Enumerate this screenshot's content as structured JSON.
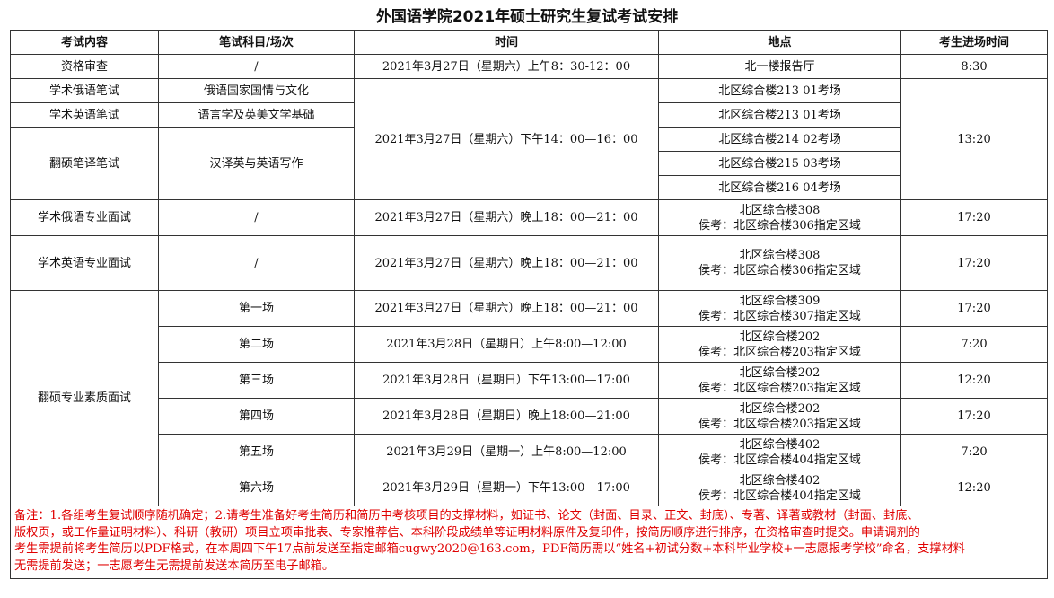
{
  "title": "外国语学院2021年硕士研究生复试考试安排",
  "headers": [
    "考试内容",
    "笔试科目/场次",
    "时间",
    "地点",
    "考生进场时间"
  ],
  "rows": {
    "qual": {
      "content": "资格审查",
      "subject": "/",
      "time": "2021年3月27日（星期六）上午8：30-12：00",
      "place": "北一楼报告厅",
      "entry": "8:30"
    },
    "written": {
      "ru_content": "学术俄语笔试",
      "ru_subject": "俄语国家国情与文化",
      "en_content": "学术英语笔试",
      "en_subject": "语言学及英美文学基础",
      "tr_content": "翻硕笔译笔试",
      "tr_subject": "汉译英与英语写作",
      "time": "2021年3月27日（星期六）下午14：00—16：00",
      "places": [
        "北区综合楼213 01考场",
        "北区综合楼213 01考场",
        "北区综合楼214 02考场",
        "北区综合楼215 03考场",
        "北区综合楼216 04考场"
      ],
      "entry": "13:20"
    },
    "ru_interview": {
      "content": "学术俄语专业面试",
      "subject": "/",
      "time": "2021年3月27日（星期六）晚上18：00—21：00",
      "place1": "北区综合楼308",
      "place2": "侯考：北区综合楼306指定区域",
      "entry": "17:20"
    },
    "en_interview": {
      "content": "学术英语专业面试",
      "subject": "/",
      "time": "2021年3月27日（星期六）晚上18：00—21：00",
      "place1": "北区综合楼308",
      "place2": "侯考：北区综合楼306指定区域",
      "entry": "17:20"
    },
    "tr_interview": {
      "content": "翻硕专业素质面试",
      "sessions": [
        {
          "name": "第一场",
          "time": "2021年3月27日（星期六）晚上18：00—21：00",
          "place1": "北区综合楼309",
          "place2": "侯考：北区综合楼307指定区域",
          "entry": "17:20"
        },
        {
          "name": "第二场",
          "time": "2021年3月28日（星期日）上午8:00—12:00",
          "place1": "北区综合楼202",
          "place2": "侯考：北区综合楼203指定区域",
          "entry": "7:20"
        },
        {
          "name": "第三场",
          "time": "2021年3月28日（星期日）下午13:00—17:00",
          "place1": "北区综合楼202",
          "place2": "侯考：北区综合楼203指定区域",
          "entry": "12:20"
        },
        {
          "name": "第四场",
          "time": "2021年3月28日（星期日）晚上18:00—21:00",
          "place1": "北区综合楼202",
          "place2": "侯考：北区综合楼203指定区域",
          "entry": "17:20"
        },
        {
          "name": "第五场",
          "time": "2021年3月29日（星期一）上午8:00—12:00",
          "place1": "北区综合楼402",
          "place2": "侯考：北区综合楼404指定区域",
          "entry": "7:20"
        },
        {
          "name": "第六场",
          "time": "2021年3月29日（星期一）下午13:00—17:00",
          "place1": "北区综合楼402",
          "place2": "侯考：北区综合楼404指定区域",
          "entry": "12:20"
        }
      ]
    }
  },
  "note_lines": [
    "备注：1.各组考生复试顺序随机确定；2.请考生准备好考生简历和简历中考核项目的支撑材料，如证书、论文（封面、目录、正文、封底）、专著、译著或教材（封面、封底、",
    "版权页，或工作量证明材料）、科研（教研）项目立项审批表、专家推荐信、本科阶段成绩单等证明材料原件及复印件，按简历顺序进行排序，在资格审查时提交。申请调剂的",
    "考生需提前将考生简历以PDF格式，在本周四下午17点前发送至指定邮箱cugwy2020@163.com，PDF简历需以“姓名+初试分数+本科毕业学校+一志愿报考学校”命名，支撑材料",
    "无需提前发送；一志愿考生无需提前发送本简历至电子邮箱。"
  ],
  "colors": {
    "note": "#e00000",
    "border": "#333333"
  }
}
